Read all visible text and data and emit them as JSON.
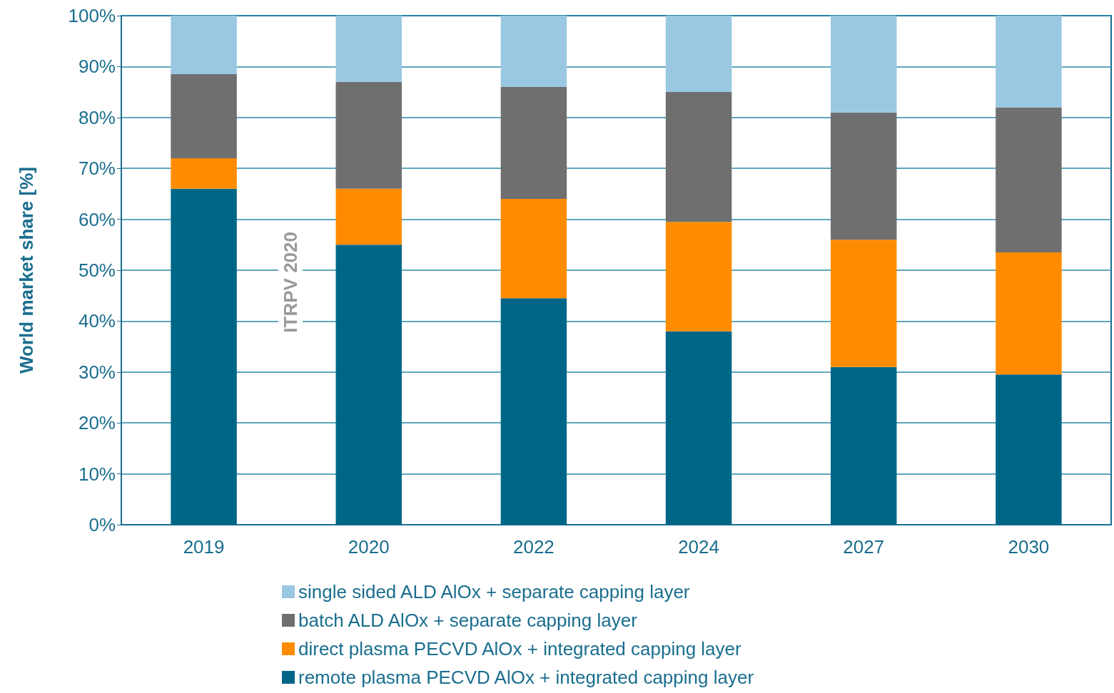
{
  "chart_data": {
    "type": "bar",
    "stacked": true,
    "ylabel": "World market share [%]",
    "categories": [
      "2019",
      "2020",
      "2022",
      "2024",
      "2027",
      "2030"
    ],
    "series": [
      {
        "name": "remote plasma PECVD AlOx + integrated capping layer",
        "color": "#006687",
        "values": [
          66,
          55,
          44.5,
          38,
          31,
          29.5
        ]
      },
      {
        "name": "direct plasma PECVD AlOx + integrated capping layer",
        "color": "#ff8c00",
        "values": [
          6,
          11,
          19.5,
          21.5,
          25,
          24
        ]
      },
      {
        "name": "batch ALD AlOx + separate capping layer",
        "color": "#6f6f6f",
        "values": [
          16.5,
          21,
          22,
          25.5,
          25,
          28.5
        ]
      },
      {
        "name": "single sided ALD AlOx + separate capping layer",
        "color": "#9ac8e2",
        "values": [
          11.5,
          13,
          14,
          15,
          19,
          18
        ]
      }
    ],
    "ylim": [
      0,
      100
    ],
    "yticks": [
      {
        "value": 0,
        "label": "0%"
      },
      {
        "value": 10,
        "label": "10%"
      },
      {
        "value": 20,
        "label": "20%"
      },
      {
        "value": 30,
        "label": "30%"
      },
      {
        "value": 40,
        "label": "40%"
      },
      {
        "value": 50,
        "label": "50%"
      },
      {
        "value": 60,
        "label": "60%"
      },
      {
        "value": 70,
        "label": "70%"
      },
      {
        "value": 80,
        "label": "80%"
      },
      {
        "value": 90,
        "label": "90%"
      },
      {
        "value": 100,
        "label": "100%"
      }
    ],
    "grid": "y",
    "legend": "bottom",
    "annotations": [
      "ITRPV 2020"
    ]
  }
}
